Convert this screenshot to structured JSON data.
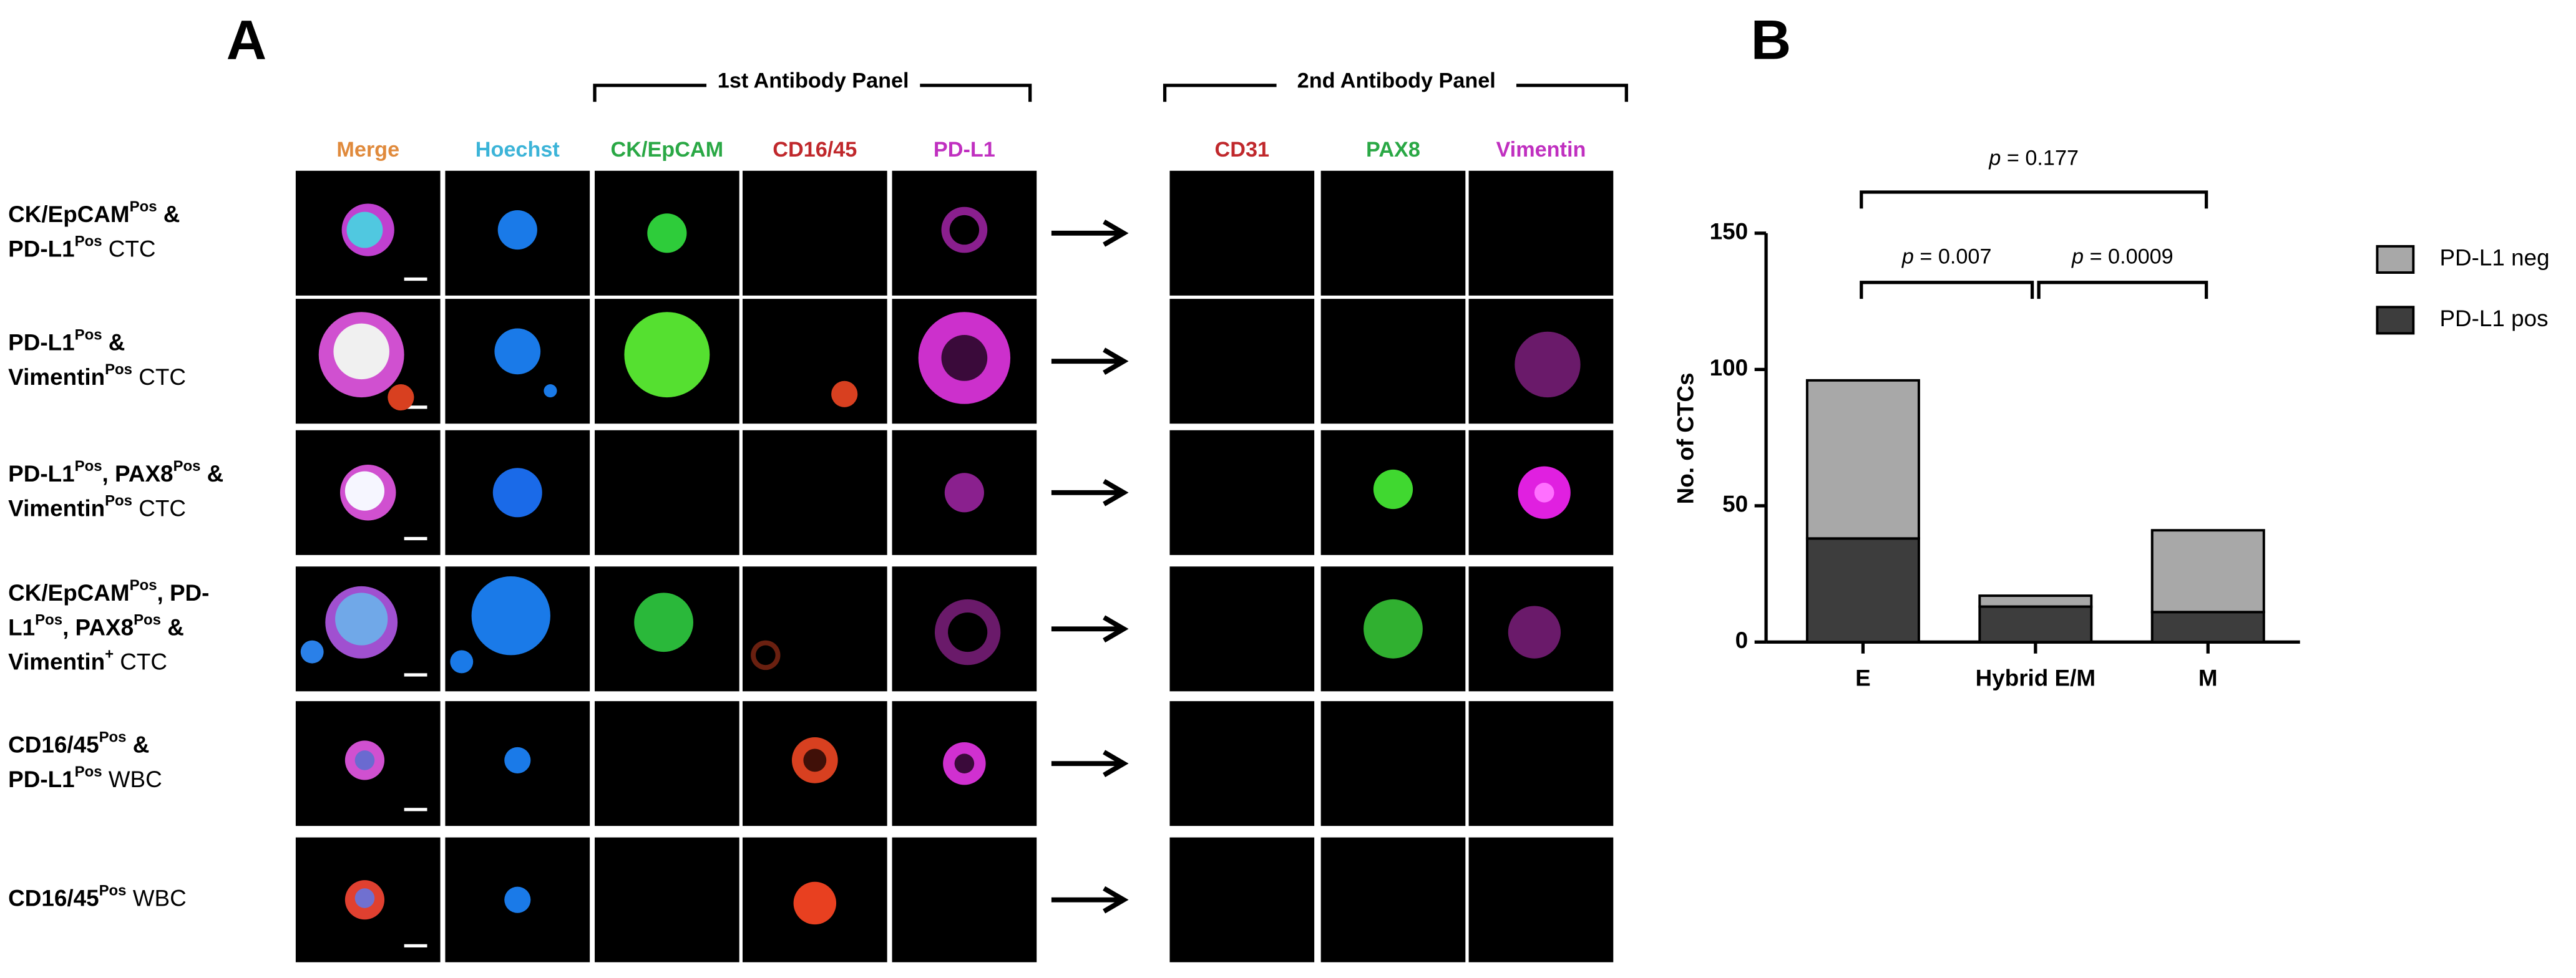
{
  "panel_labels": [
    "A",
    "B"
  ],
  "panel_a": {
    "panels": [
      {
        "title": "1st Antibody Panel"
      },
      {
        "title": "2nd Antibody Panel"
      }
    ],
    "columns": [
      {
        "name": "Merge",
        "color": "#e08a3c"
      },
      {
        "name": "Hoechst",
        "color": "#3cb4d8"
      },
      {
        "name": "CK/EpCAM",
        "color": "#2aa845"
      },
      {
        "name": "CD16/45",
        "color": "#c0282c"
      },
      {
        "name": "PD-L1",
        "color": "#c030c0"
      },
      {
        "name": "CD31",
        "color": "#c0282c"
      },
      {
        "name": "PAX8",
        "color": "#2aa845"
      },
      {
        "name": "Vimentin",
        "color": "#c030c0"
      }
    ],
    "rows": [
      {
        "label": [
          [
            {
              "text": "CK/EpCAM",
              "style": "bold"
            },
            {
              "text": "Pos",
              "style": "sup"
            },
            {
              "text": " &",
              "style": "bold"
            }
          ],
          [
            {
              "text": "PD-L1",
              "style": "bold"
            },
            {
              "text": "Pos",
              "style": "sup"
            },
            {
              "text": "  CTC",
              "style": "normal"
            }
          ]
        ]
      },
      {
        "label": [
          [
            {
              "text": "PD-L1",
              "style": "bold"
            },
            {
              "text": "Pos",
              "style": "sup"
            },
            {
              "text": " &",
              "style": "bold"
            }
          ],
          [
            {
              "text": "Vimentin",
              "style": "bold"
            },
            {
              "text": "Pos",
              "style": "sup"
            },
            {
              "text": " CTC",
              "style": "normal"
            }
          ]
        ]
      },
      {
        "label": [
          [
            {
              "text": "PD-L1",
              "style": "bold"
            },
            {
              "text": "Pos",
              "style": "sup"
            },
            {
              "text": ", PAX8",
              "style": "bold"
            },
            {
              "text": "Pos",
              "style": "sup"
            },
            {
              "text": " &",
              "style": "bold"
            }
          ],
          [
            {
              "text": "Vimentin",
              "style": "bold"
            },
            {
              "text": "Pos",
              "style": "sup"
            },
            {
              "text": " CTC",
              "style": "normal"
            }
          ]
        ]
      },
      {
        "label": [
          [
            {
              "text": "CK/EpCAM",
              "style": "bold"
            },
            {
              "text": "Pos",
              "style": "sup"
            },
            {
              "text": ", PD-",
              "style": "bold"
            }
          ],
          [
            {
              "text": "L1",
              "style": "bold"
            },
            {
              "text": "Pos",
              "style": "sup"
            },
            {
              "text": ", PAX8",
              "style": "bold"
            },
            {
              "text": "Pos",
              "style": "sup"
            },
            {
              "text": " &",
              "style": "bold"
            }
          ],
          [
            {
              "text": "Vimentin",
              "style": "bold"
            },
            {
              "text": "+",
              "style": "sup"
            },
            {
              "text": " CTC",
              "style": "normal"
            }
          ]
        ]
      },
      {
        "label": [
          [
            {
              "text": "CD16/45",
              "style": "bold"
            },
            {
              "text": "Pos",
              "style": "sup"
            },
            {
              "text": " &",
              "style": "bold"
            }
          ],
          [
            {
              "text": "PD-L1",
              "style": "bold"
            },
            {
              "text": "Pos",
              "style": "sup"
            },
            {
              "text": " WBC",
              "style": "normal"
            }
          ]
        ]
      },
      {
        "label": [
          [
            {
              "text": "CD16/45",
              "style": "bold"
            },
            {
              "text": "Pos",
              "style": "sup"
            },
            {
              "text": " WBC",
              "style": "normal"
            }
          ]
        ]
      }
    ]
  },
  "chart_data": {
    "type": "bar",
    "stacked": true,
    "y_label": "No. of CTCs",
    "categories": [
      "E",
      "Hybrid E/M",
      "M"
    ],
    "series": [
      {
        "name": "PD-L1 pos",
        "color": "#3d3d3d",
        "values": [
          38,
          13,
          11
        ]
      },
      {
        "name": "PD-L1 neg",
        "color": "#a8a8a8",
        "values": [
          58,
          4,
          30
        ]
      }
    ],
    "ylim": [
      0,
      150
    ],
    "yticks": [
      0,
      50,
      100,
      150
    ],
    "annotations": [
      {
        "parts": [
          {
            "text": "p",
            "style": "italic"
          },
          {
            "text": " = 0.177",
            "style": "normal"
          }
        ]
      },
      {
        "parts": [
          {
            "text": "p",
            "style": "italic"
          },
          {
            "text": " = 0.007",
            "style": "normal"
          }
        ]
      },
      {
        "parts": [
          {
            "text": "p",
            "style": "italic"
          },
          {
            "text": " = 0.0009",
            "style": "normal"
          }
        ]
      }
    ]
  }
}
